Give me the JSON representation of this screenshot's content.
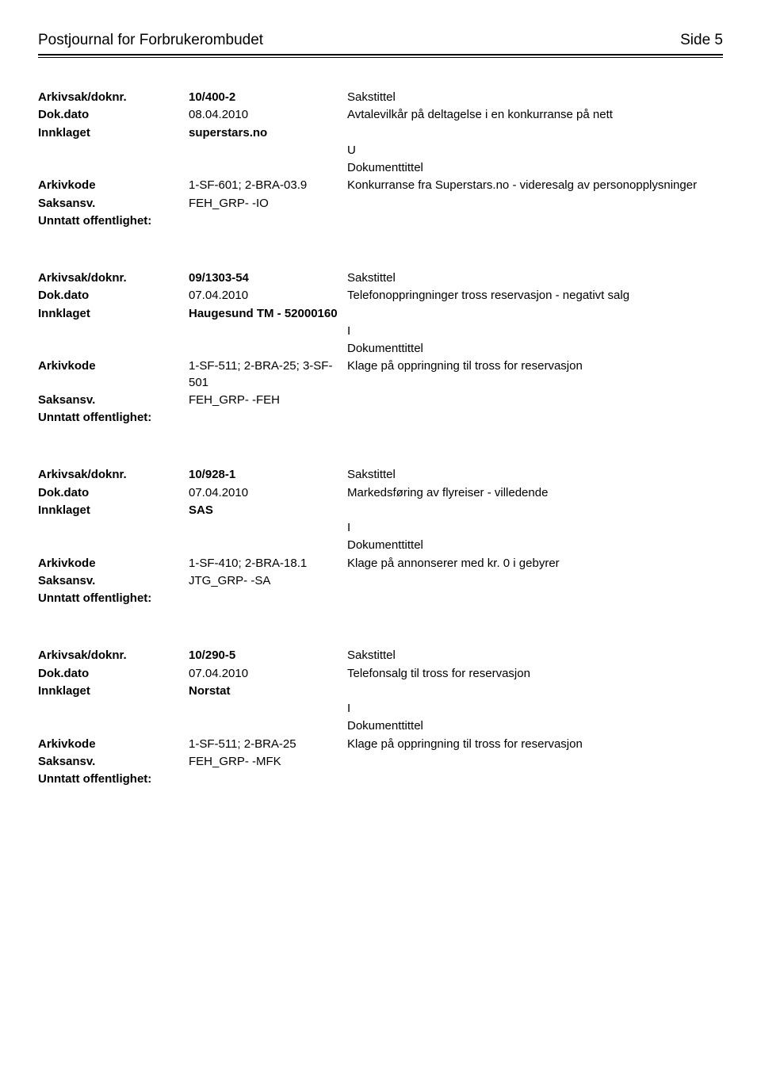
{
  "header": {
    "title": "Postjournal for Forbrukerombudet",
    "page": "Side 5"
  },
  "labels": {
    "arkivsak": "Arkivsak/doknr.",
    "dokdato": "Dok.dato",
    "innklaget": "Innklaget",
    "arkivkode": "Arkivkode",
    "saksansv": "Saksansv.",
    "unntatt": "Unntatt offentlighet:",
    "sakstittel": "Sakstittel",
    "dokumenttittel": "Dokumenttittel"
  },
  "entries": [
    {
      "doknr": "10/400-2",
      "dokdato": "08.04.2010",
      "sakstittel": "Avtalevilkår på deltagelse i en konkurranse på nett",
      "innklaget": "superstars.no",
      "direction": "U",
      "arkivkode": "1-SF-601; 2-BRA-03.9",
      "dokumenttittel": "Konkurranse fra Superstars.no - videresalg av personopplysninger",
      "saksansv": "FEH_GRP- -IO",
      "unntatt": ""
    },
    {
      "doknr": "09/1303-54",
      "dokdato": "07.04.2010",
      "sakstittel": "Telefonoppringninger tross reservasjon - negativt salg",
      "innklaget": "Haugesund TM - 52000160",
      "direction": "I",
      "arkivkode": "1-SF-511; 2-BRA-25; 3-SF-501",
      "dokumenttittel": "Klage på oppringning til tross for reservasjon",
      "saksansv": "FEH_GRP- -FEH",
      "unntatt": ""
    },
    {
      "doknr": "10/928-1",
      "dokdato": "07.04.2010",
      "sakstittel": "Markedsføring av flyreiser - villedende",
      "innklaget": "SAS",
      "direction": "I",
      "arkivkode": "1-SF-410; 2-BRA-18.1",
      "dokumenttittel": "Klage på annonserer med kr. 0 i gebyrer",
      "saksansv": "JTG_GRP- -SA",
      "unntatt": ""
    },
    {
      "doknr": "10/290-5",
      "dokdato": "07.04.2010",
      "sakstittel": "Telefonsalg til tross for reservasjon",
      "innklaget": "Norstat",
      "direction": "I",
      "arkivkode": "1-SF-511; 2-BRA-25",
      "dokumenttittel": "Klage på oppringning til tross for reservasjon",
      "saksansv": "FEH_GRP- -MFK",
      "unntatt": ""
    }
  ]
}
